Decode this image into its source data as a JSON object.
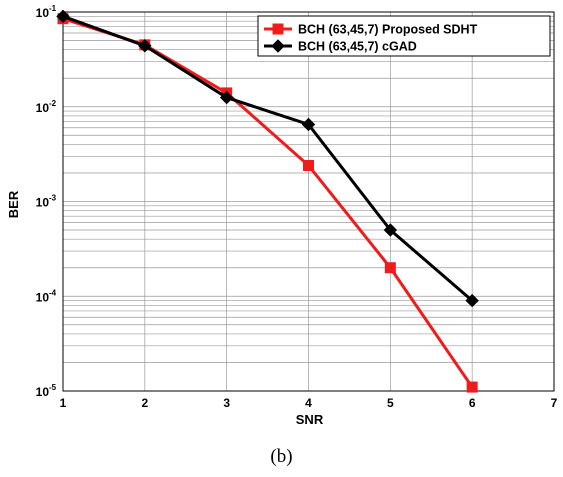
{
  "chart_data": {
    "type": "line",
    "xlabel": "SNR",
    "ylabel": "BER",
    "xlim": [
      1,
      7
    ],
    "ylim": [
      1e-05,
      0.1
    ],
    "yscale": "log",
    "x_ticks": [
      "1",
      "2",
      "3",
      "4",
      "5",
      "6",
      "7"
    ],
    "y_ticks": [
      {
        "base": "10",
        "exp": "-5"
      },
      {
        "base": "10",
        "exp": "-4"
      },
      {
        "base": "10",
        "exp": "-3"
      },
      {
        "base": "10",
        "exp": "-2"
      },
      {
        "base": "10",
        "exp": "-1"
      }
    ],
    "grid": true,
    "legend_position": "top-right",
    "series": [
      {
        "name": "BCH (63,45,7) Proposed SDHT",
        "color": "#ee1c1c",
        "marker": "square",
        "x": [
          1,
          2,
          3,
          4,
          5,
          6
        ],
        "y": [
          0.085,
          0.045,
          0.014,
          0.0024,
          0.0002,
          1.1e-05
        ]
      },
      {
        "name": "BCH (63,45,7) cGAD",
        "color": "#000000",
        "marker": "diamond",
        "x": [
          1,
          2,
          3,
          4,
          5,
          6
        ],
        "y": [
          0.09,
          0.044,
          0.0125,
          0.0065,
          0.0005,
          9e-05
        ]
      }
    ]
  },
  "caption": "(b)"
}
